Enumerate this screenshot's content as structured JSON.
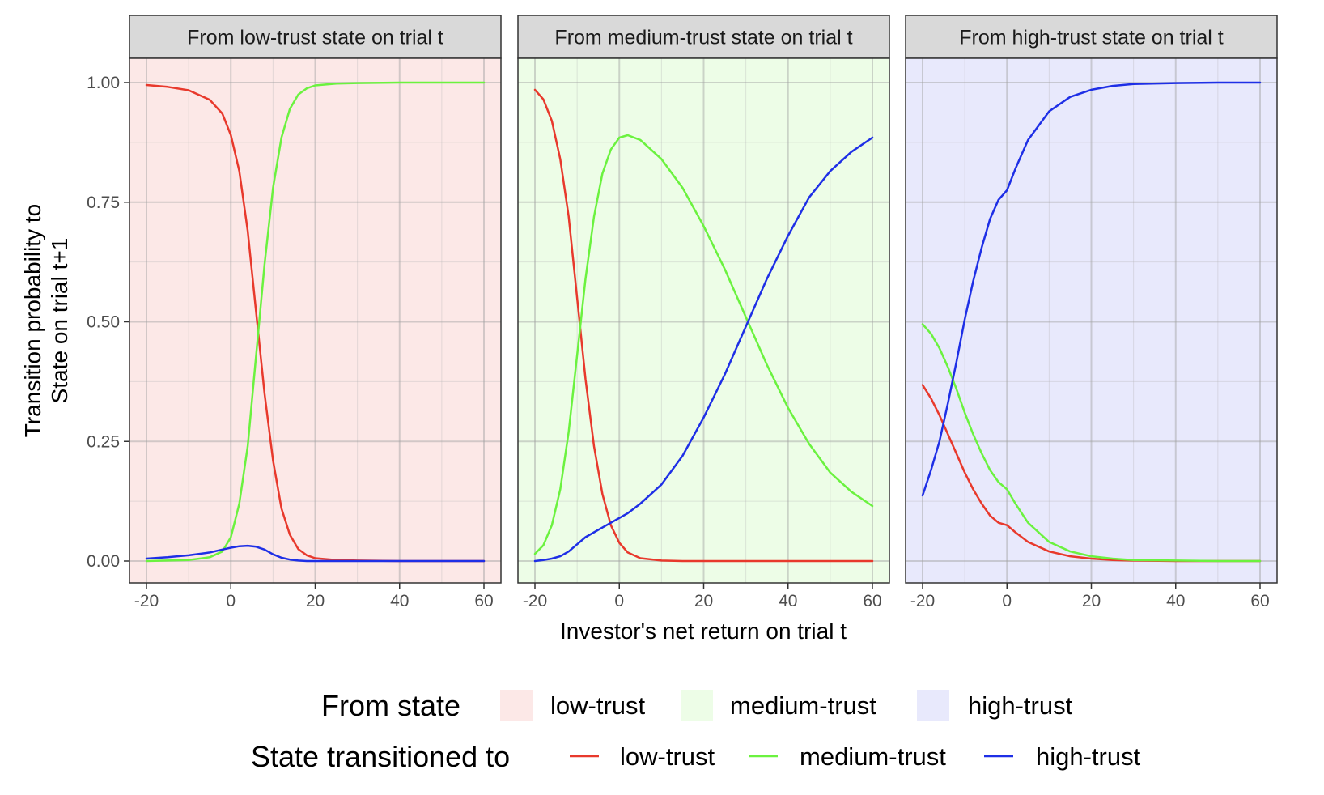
{
  "chart_data": {
    "type": "line",
    "xlabel": "Investor's net return on trial t",
    "ylabel": [
      "Transition probability to",
      "State on trial t+1"
    ],
    "xlim": [
      -20,
      60
    ],
    "ylim": [
      0,
      1
    ],
    "x_ticks": [
      -20,
      0,
      20,
      40,
      60
    ],
    "x_tick_labels": [
      "-20",
      "0",
      "20",
      "40",
      "60"
    ],
    "y_ticks": [
      0,
      0.25,
      0.5,
      0.75,
      1
    ],
    "y_tick_labels": [
      "0.00",
      "0.25",
      "0.50",
      "0.75",
      "1.00"
    ],
    "grid": true,
    "colors": {
      "low-trust": "#E8392C",
      "medium-trust": "#6BF23F",
      "high-trust": "#1E2FE6",
      "panel_bg": {
        "low-trust": "#FCE8E7",
        "medium-trust": "#EDFDE7",
        "high-trust": "#E8E9FC"
      }
    },
    "panels": [
      {
        "strip": "From low-trust state on trial t",
        "from_state": "low-trust",
        "x": [
          -20,
          -15,
          -10,
          -5,
          -2,
          0,
          2,
          4,
          6,
          8,
          10,
          12,
          14,
          16,
          18,
          20,
          25,
          30,
          40,
          50,
          60
        ],
        "series": [
          {
            "name": "low-trust",
            "values": [
              0.995,
              0.991,
              0.984,
              0.964,
              0.935,
              0.89,
              0.815,
              0.69,
              0.52,
              0.35,
              0.21,
              0.11,
              0.055,
              0.025,
              0.012,
              0.006,
              0.002,
              0.001,
              0.0,
              0.0,
              0.0
            ]
          },
          {
            "name": "medium-trust",
            "values": [
              0.0,
              0.001,
              0.002,
              0.008,
              0.02,
              0.05,
              0.12,
              0.24,
              0.43,
              0.62,
              0.78,
              0.885,
              0.945,
              0.975,
              0.988,
              0.994,
              0.998,
              0.999,
              1.0,
              1.0,
              1.0
            ]
          },
          {
            "name": "high-trust",
            "values": [
              0.005,
              0.008,
              0.012,
              0.018,
              0.024,
              0.028,
              0.031,
              0.032,
              0.03,
              0.024,
              0.014,
              0.007,
              0.003,
              0.001,
              0.0,
              0.0,
              0.0,
              0.0,
              0.0,
              0.0,
              0.0
            ]
          }
        ]
      },
      {
        "strip": "From medium-trust state on trial t",
        "from_state": "medium-trust",
        "x": [
          -20,
          -18,
          -16,
          -14,
          -12,
          -10,
          -8,
          -6,
          -4,
          -2,
          0,
          2,
          5,
          10,
          15,
          20,
          25,
          30,
          35,
          40,
          45,
          50,
          55,
          60
        ],
        "series": [
          {
            "name": "low-trust",
            "values": [
              0.985,
              0.965,
              0.92,
              0.84,
              0.72,
              0.55,
              0.38,
              0.24,
              0.14,
              0.075,
              0.038,
              0.018,
              0.006,
              0.001,
              0.0,
              0.0,
              0.0,
              0.0,
              0.0,
              0.0,
              0.0,
              0.0,
              0.0,
              0.0
            ]
          },
          {
            "name": "medium-trust",
            "values": [
              0.015,
              0.033,
              0.075,
              0.15,
              0.27,
              0.43,
              0.59,
              0.72,
              0.81,
              0.86,
              0.885,
              0.89,
              0.88,
              0.84,
              0.78,
              0.7,
              0.61,
              0.51,
              0.41,
              0.32,
              0.245,
              0.185,
              0.145,
              0.115
            ]
          },
          {
            "name": "high-trust",
            "values": [
              0.0,
              0.002,
              0.005,
              0.01,
              0.02,
              0.035,
              0.05,
              0.06,
              0.07,
              0.08,
              0.09,
              0.1,
              0.12,
              0.16,
              0.22,
              0.3,
              0.39,
              0.49,
              0.59,
              0.68,
              0.76,
              0.815,
              0.855,
              0.885
            ]
          }
        ]
      },
      {
        "strip": "From high-trust state on trial t",
        "from_state": "high-trust",
        "x": [
          -20,
          -18,
          -16,
          -14,
          -12,
          -10,
          -8,
          -6,
          -4,
          -2,
          0,
          2,
          5,
          10,
          15,
          20,
          25,
          30,
          40,
          50,
          60
        ],
        "series": [
          {
            "name": "low-trust",
            "values": [
              0.368,
              0.34,
              0.305,
              0.265,
              0.225,
              0.185,
              0.15,
              0.12,
              0.095,
              0.08,
              0.075,
              0.06,
              0.04,
              0.02,
              0.01,
              0.005,
              0.002,
              0.001,
              0.0,
              0.0,
              0.0
            ]
          },
          {
            "name": "medium-trust",
            "values": [
              0.495,
              0.475,
              0.445,
              0.405,
              0.36,
              0.31,
              0.265,
              0.225,
              0.19,
              0.165,
              0.15,
              0.12,
              0.08,
              0.04,
              0.02,
              0.01,
              0.005,
              0.002,
              0.001,
              0.0,
              0.0
            ]
          },
          {
            "name": "high-trust",
            "values": [
              0.137,
              0.19,
              0.25,
              0.33,
              0.415,
              0.505,
              0.585,
              0.655,
              0.715,
              0.755,
              0.775,
              0.82,
              0.88,
              0.94,
              0.97,
              0.985,
              0.993,
              0.997,
              0.999,
              1.0,
              1.0
            ]
          }
        ]
      }
    ],
    "legend": [
      {
        "title": "From state",
        "kind": "fill",
        "items": [
          {
            "label": "low-trust",
            "key": "low-trust"
          },
          {
            "label": "medium-trust",
            "key": "medium-trust"
          },
          {
            "label": "high-trust",
            "key": "high-trust"
          }
        ]
      },
      {
        "title": "State transitioned to",
        "kind": "line",
        "items": [
          {
            "label": "low-trust",
            "key": "low-trust"
          },
          {
            "label": "medium-trust",
            "key": "medium-trust"
          },
          {
            "label": "high-trust",
            "key": "high-trust"
          }
        ]
      }
    ]
  }
}
